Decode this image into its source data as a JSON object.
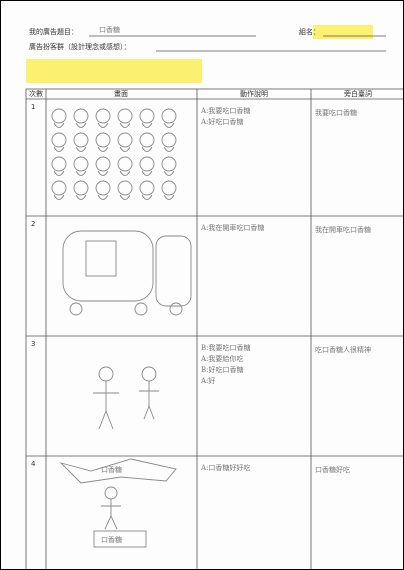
{
  "header": {
    "title_label": "我的廣告題目：",
    "title_value": "口香糖",
    "group_label": "組名：",
    "concept_label": "廣告扮客群（設計理念或感想）："
  },
  "table": {
    "columns": [
      "次數",
      "畫面",
      "動作說明",
      "旁白臺詞"
    ],
    "rows": [
      {
        "number": "1",
        "action": [
          "A:我要吃口香糖",
          "A:好吃口香糖"
        ],
        "dialogue": "我要吃口香糖"
      },
      {
        "number": "2",
        "action": "A:我在開車吃口香糖",
        "dialogue": "我在開車吃口香糖"
      },
      {
        "number": "3",
        "action": [
          "B:我要吃口香糖",
          "A:我要給你吃",
          "B:好吃口香糖",
          "A:好"
        ],
        "dialogue": "吃口香糖人很精神"
      },
      {
        "number": "4",
        "action": "A:口香糖好好吃",
        "dialogue": "口香糖好吃",
        "drawing_text": "口香糖",
        "sign": "口香糖"
      }
    ]
  }
}
